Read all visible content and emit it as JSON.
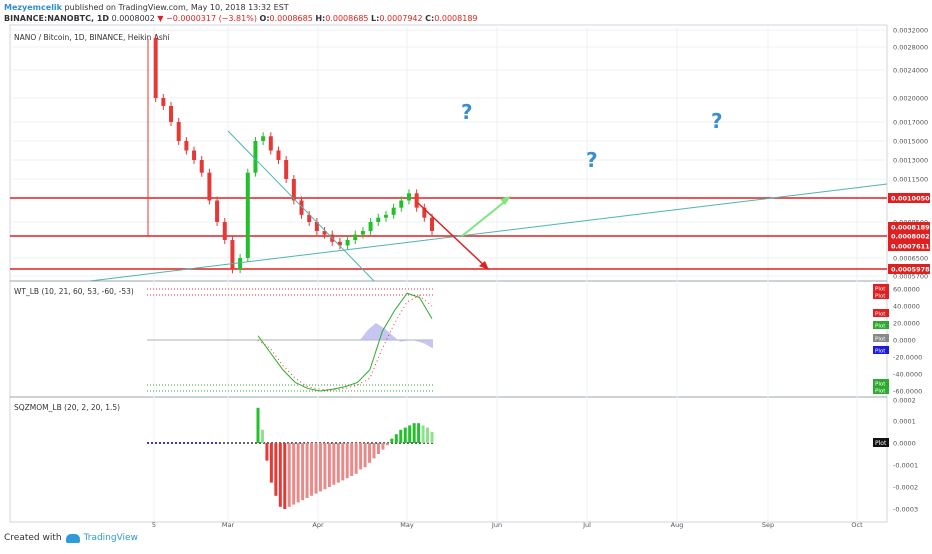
{
  "header": {
    "user": "Mezyemcelik",
    "published": "published on TradingView.com, May 10, 2018 13:32 EST",
    "symbol": "BINANCE:NANOBTC, 1D",
    "last": "0.0008002",
    "change": "−0.0000317 (−3.81%)",
    "o_label": "O:",
    "o": "0.0008685",
    "h_label": "H:",
    "h": "0.0008685",
    "l_label": "L:",
    "l": "0.0007942",
    "c_label": "C:",
    "c": "0.0008189"
  },
  "footer": {
    "created": "Created with",
    "brand": "TradingView"
  },
  "colors": {
    "up": "#26a69a",
    "up_bright": "#22c02a",
    "down": "#e53935",
    "level": "#e02020",
    "trend": "#4db6ac",
    "arrow_up": "#7de67d",
    "qmark": "#3b8fd0"
  },
  "chart_data": [
    {
      "type": "line",
      "panel": "price",
      "title": "NANO / Bitcoin, 1D, BINANCE, Heikin Ashi",
      "ylim": [
        0.00052,
        0.00032
      ],
      "y_ticks": [
        "0.0032000",
        "0.0028000",
        "0.0024000",
        "0.0020000",
        "0.0017000",
        "0.0015000",
        "0.0013000",
        "0.0011500",
        "0.0008500",
        "0.0006500",
        "0.0005700"
      ],
      "x_ticks": [
        "5",
        "Mar",
        "Apr",
        "May",
        "Jun",
        "Jul",
        "Aug",
        "Sep",
        "Oct"
      ],
      "series": [
        {
          "values": [
            0.003,
            0.002,
            0.0019,
            0.0017,
            0.0015,
            0.0014,
            0.0013,
            0.0012,
            0.001,
            0.00085,
            0.00075,
            0.0006,
            0.00065,
            0.0012,
            0.0015,
            0.00155,
            0.0014,
            0.0013,
            0.00115,
            0.001,
            0.0009,
            0.00085,
            0.0008,
            0.00078,
            0.00074,
            0.00072,
            0.00075,
            0.00078,
            0.0008,
            0.00085,
            0.00088,
            0.0009,
            0.00095,
            0.001,
            0.00105,
            0.00095,
            0.00088,
            0.0008
          ]
        }
      ],
      "levels": [
        {
          "label": "0.0010050",
          "value": 0.001005
        },
        {
          "label": "0.0008189",
          "value": 0.0008189
        },
        {
          "label": "0.0008002",
          "value": 0.0008002
        },
        {
          "label": "0.0007611",
          "value": 0.0007611
        },
        {
          "label": "0.0005978",
          "value": 0.0005978
        }
      ],
      "annotations": [
        "?",
        "?",
        "?"
      ]
    },
    {
      "type": "line",
      "panel": "wt",
      "title": "WT_LB (10, 21, 60, 53, -60, -53)",
      "ylim": [
        -68,
        68
      ],
      "y_ticks": [
        "60.0000",
        "40.0000",
        "20.0000",
        "0.0000",
        "-20.0000",
        "-40.0000",
        "-60.0000"
      ],
      "legend": [
        "Plot",
        "Plot",
        "Plot",
        "Plot",
        "Plot",
        "Plot",
        "Plot",
        "Plot"
      ],
      "series": [
        {
          "values": [
            5,
            -15,
            -35,
            -50,
            -57,
            -60,
            -58,
            -55,
            -50,
            -35,
            10,
            35,
            55,
            50,
            25
          ]
        },
        {
          "values": [
            0,
            -10,
            -30,
            -45,
            -55,
            -58,
            -59,
            -57,
            -53,
            -45,
            -10,
            20,
            45,
            52,
            40
          ]
        }
      ]
    },
    {
      "type": "bar",
      "panel": "sqzmom",
      "title": "SQZMOM_LB (20, 2, 20, 1.5)",
      "ylim": [
        -0.00035,
        0.0002
      ],
      "y_ticks": [
        "0.0002",
        "0.0001",
        "0.0000",
        "-0.0001",
        "-0.0002",
        "-0.0003"
      ],
      "legend": [
        "Plot"
      ],
      "values": [
        0.00016,
        6e-05,
        -8e-05,
        -0.00018,
        -0.00024,
        -0.00029,
        -0.0003,
        -0.00029,
        -0.00028,
        -0.00027,
        -0.00026,
        -0.00025,
        -0.00024,
        -0.00023,
        -0.00022,
        -0.00021,
        -0.0002,
        -0.00019,
        -0.00018,
        -0.00017,
        -0.00016,
        -0.00015,
        -0.00014,
        -0.00012,
        -0.00011,
        -9e-05,
        -7e-05,
        -5e-05,
        -3e-05,
        -1e-05,
        2e-05,
        4e-05,
        6e-05,
        7e-05,
        8e-05,
        9e-05,
        9e-05,
        8e-05,
        7e-05,
        5e-05
      ]
    }
  ]
}
